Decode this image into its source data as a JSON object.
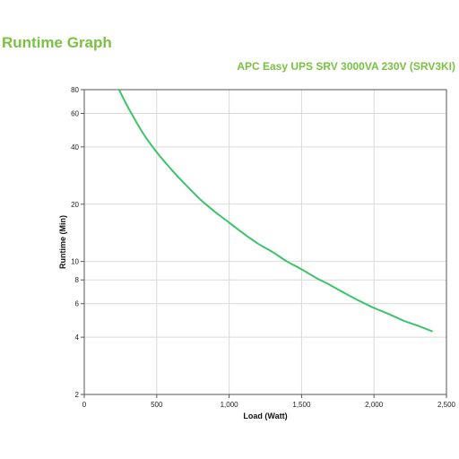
{
  "page": {
    "title": "Runtime Graph"
  },
  "chart_data": {
    "type": "line",
    "title": "APC Easy UPS SRV 3000VA 230V (SRV3KI)",
    "xlabel": "Load (Watt)",
    "ylabel": "Runtime (Min)",
    "xlim": [
      0,
      2500
    ],
    "ylim": [
      2,
      80
    ],
    "y_scale": "log",
    "grid": true,
    "x_ticks": [
      0,
      500,
      1000,
      1500,
      2000,
      2500
    ],
    "x_tick_labels": [
      "0",
      "500",
      "1,000",
      "1,500",
      "2,000",
      "2,500"
    ],
    "y_ticks": [
      2,
      4,
      6,
      8,
      10,
      20,
      40,
      60,
      80
    ],
    "y_tick_labels": [
      "2",
      "4",
      "6",
      "8",
      "10",
      "20",
      "40",
      "60",
      "80"
    ],
    "line_color": "#3cc46a",
    "accent_color": "#7ac143",
    "series": [
      {
        "x": [
          240,
          300,
          400,
          500,
          600,
          700,
          800,
          900,
          1000,
          1100,
          1200,
          1300,
          1400,
          1500,
          1600,
          1700,
          1800,
          1900,
          2000,
          2100,
          2200,
          2300,
          2400
        ],
        "values": [
          80,
          65,
          48,
          37.5,
          30.5,
          25.3,
          21.2,
          18.3,
          16,
          14,
          12.4,
          11.2,
          10,
          9.1,
          8.2,
          7.5,
          6.8,
          6.2,
          5.7,
          5.3,
          4.9,
          4.6,
          4.3
        ]
      }
    ]
  }
}
